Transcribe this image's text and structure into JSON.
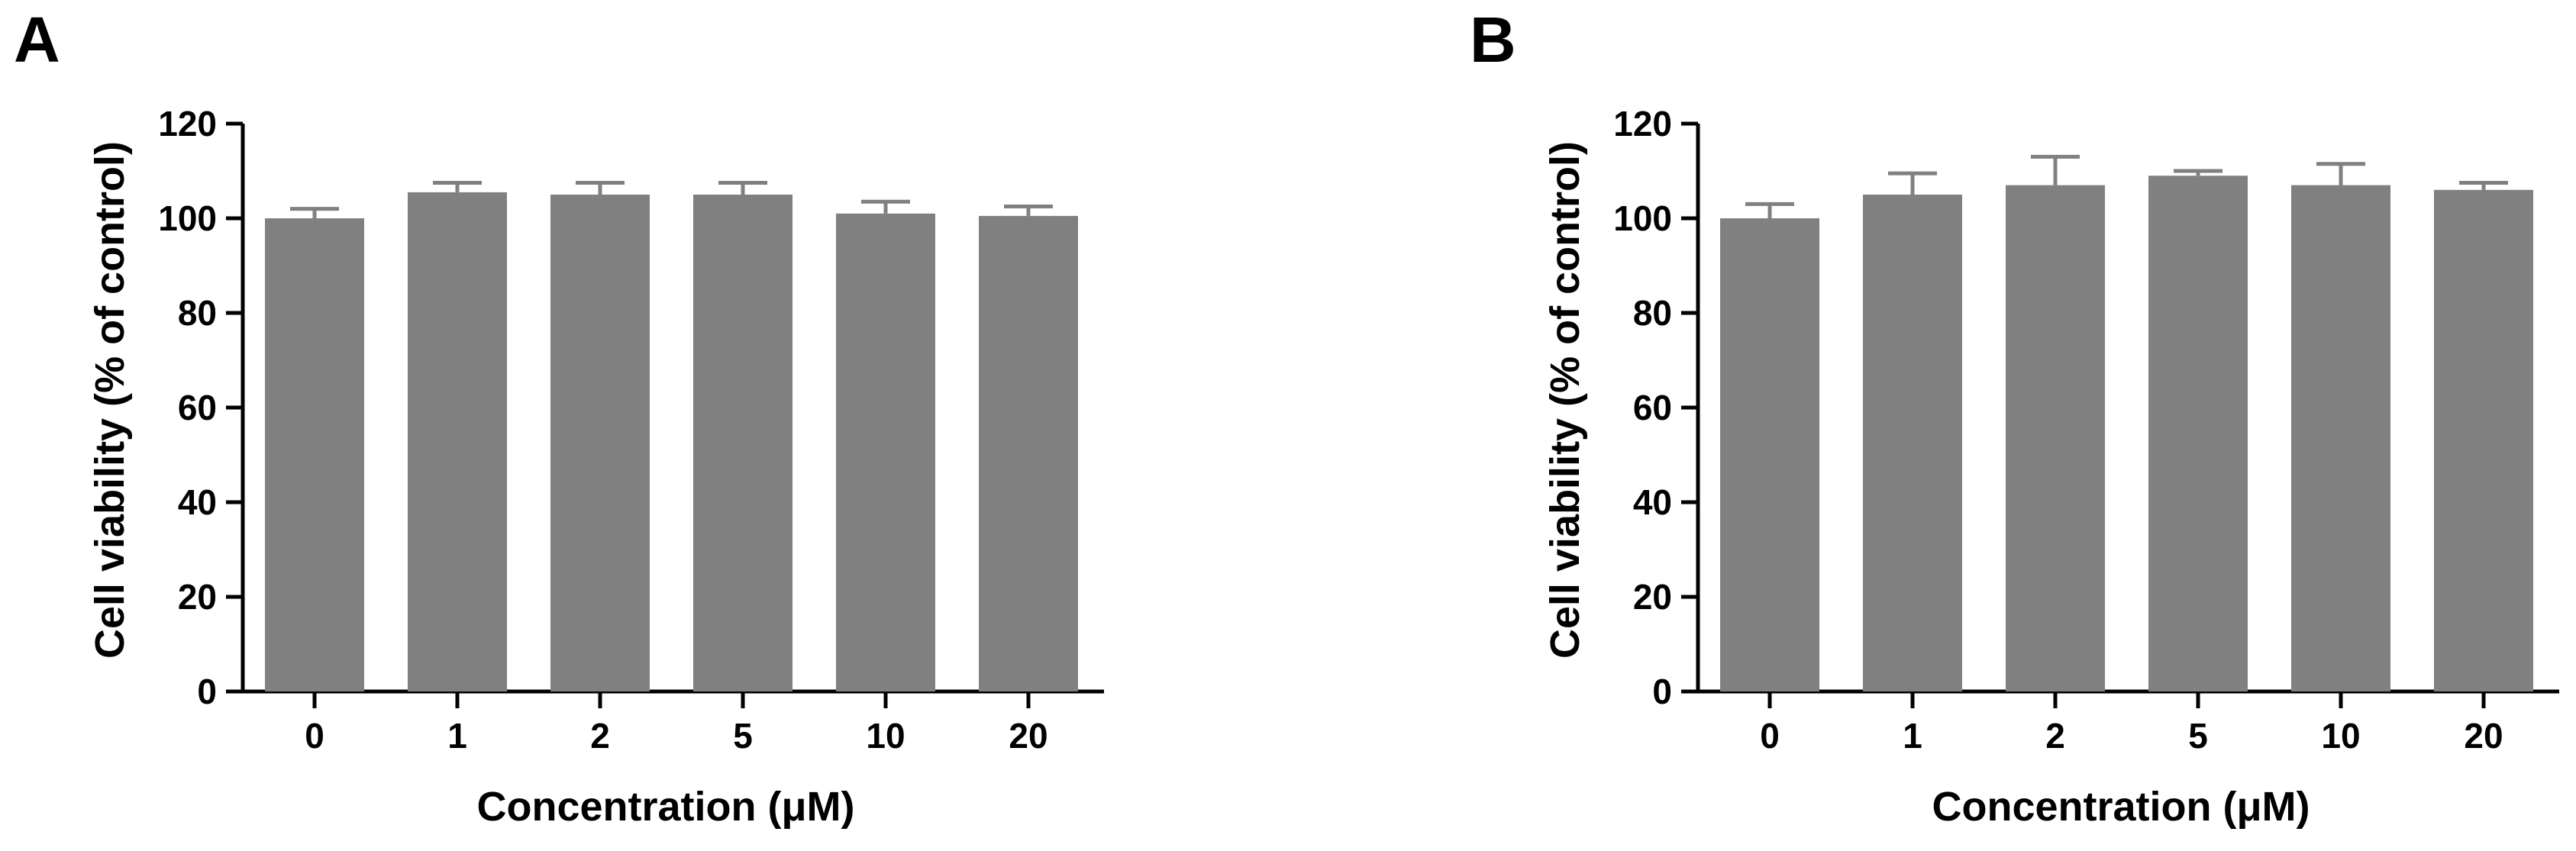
{
  "panels": [
    {
      "letter": "A"
    },
    {
      "letter": "B"
    }
  ],
  "colors": {
    "bar": "#808080",
    "error_bar": "#808080",
    "axis": "#000000"
  },
  "chart_data": [
    {
      "type": "bar",
      "panel": "A",
      "categories": [
        "0",
        "1",
        "2",
        "5",
        "10",
        "20"
      ],
      "values": [
        100,
        105.5,
        105,
        105,
        101,
        100.5
      ],
      "errors": [
        2,
        2,
        2.5,
        2.5,
        2.5,
        2
      ],
      "xlabel": "Concentration (μM)",
      "ylabel": "Cell viability (% of control)",
      "ylim": [
        0,
        120
      ],
      "yticks": [
        "0",
        "20",
        "40",
        "60",
        "80",
        "100",
        "120"
      ],
      "grid": false,
      "legend": "none"
    },
    {
      "type": "bar",
      "panel": "B",
      "categories": [
        "0",
        "1",
        "2",
        "5",
        "10",
        "20"
      ],
      "values": [
        100,
        105,
        107,
        109,
        107,
        106
      ],
      "errors": [
        3,
        4.5,
        6,
        1,
        4.5,
        1.5
      ],
      "xlabel": "Concentration (μM)",
      "ylabel": "Cell viability (% of control)",
      "ylim": [
        0,
        120
      ],
      "yticks": [
        "0",
        "20",
        "40",
        "60",
        "80",
        "100",
        "120"
      ],
      "grid": false,
      "legend": "none"
    }
  ]
}
